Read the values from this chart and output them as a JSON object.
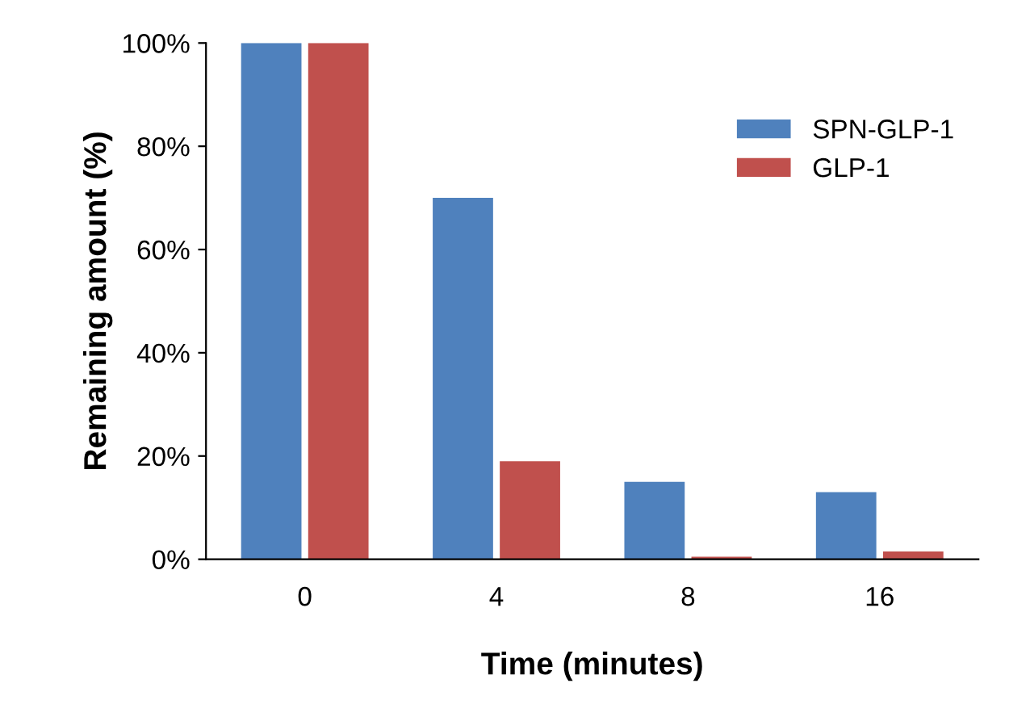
{
  "chart_data": {
    "type": "bar",
    "xlabel": "Time (minutes)",
    "ylabel": "Remaining amount (%)",
    "categories": [
      "0",
      "4",
      "8",
      "16"
    ],
    "series": [
      {
        "name": "SPN-GLP-1",
        "color": "#4f81bd",
        "values": [
          100,
          70,
          15,
          13
        ]
      },
      {
        "name": "GLP-1",
        "color": "#c0504d",
        "values": [
          100,
          19,
          0.5,
          1.5
        ]
      }
    ],
    "ylim": [
      0,
      100
    ],
    "yticks": [
      {
        "value": 0,
        "label": "0%"
      },
      {
        "value": 20,
        "label": "20%"
      },
      {
        "value": 40,
        "label": "40%"
      },
      {
        "value": 60,
        "label": "60%"
      },
      {
        "value": 80,
        "label": "80%"
      },
      {
        "value": 100,
        "label": "100%"
      }
    ],
    "grid": false,
    "legend": "top right"
  }
}
